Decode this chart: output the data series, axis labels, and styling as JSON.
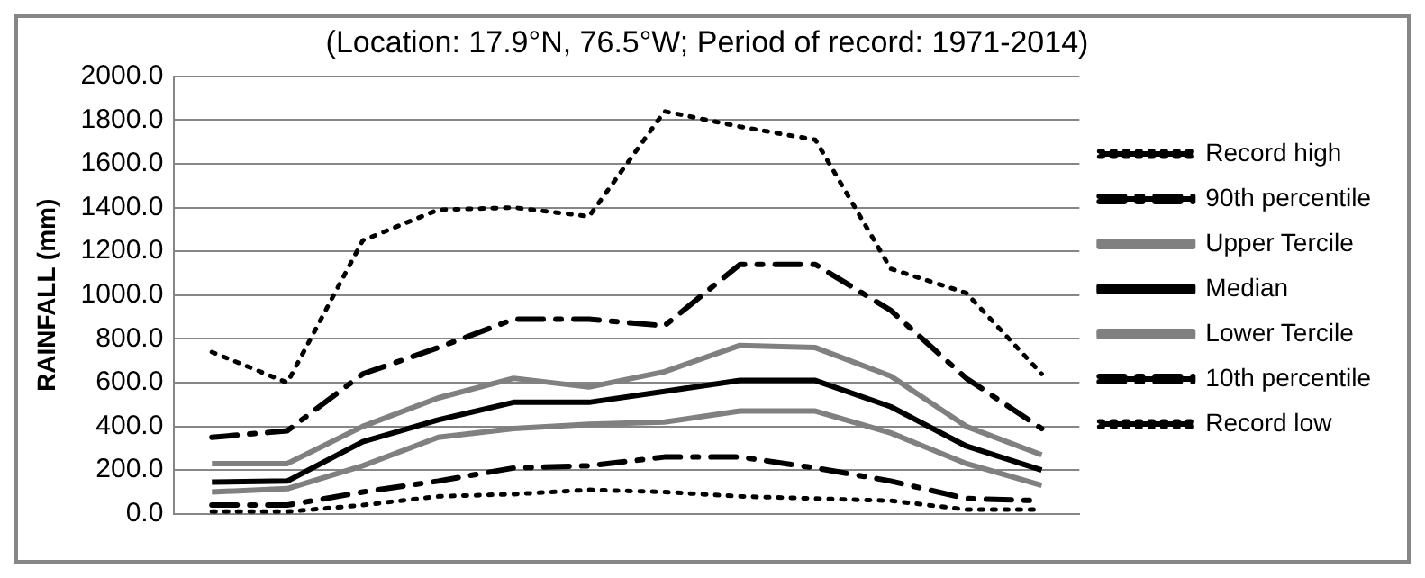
{
  "chart_data": {
    "type": "line",
    "title": "(Location: 17.9°N, 76.5°W; Period of record: 1971-2014)",
    "ylabel": "RAINFALL (mm)",
    "categories": [
      null,
      null,
      null,
      null,
      null,
      null,
      null,
      null,
      null,
      null,
      null,
      null
    ],
    "series": [
      {
        "name": "Record high",
        "color": "#000000",
        "line_style": "dotted",
        "values": [
          740,
          600,
          1250,
          1390,
          1400,
          1360,
          1840,
          1770,
          1710,
          1120,
          1010,
          640
        ]
      },
      {
        "name": "90th percentile",
        "color": "#000000",
        "line_style": "dashed",
        "values": [
          350,
          380,
          640,
          760,
          890,
          890,
          860,
          1140,
          1140,
          930,
          620,
          390
        ]
      },
      {
        "name": "Upper Tercile",
        "color": "#808080",
        "line_style": "solid",
        "values": [
          230,
          230,
          400,
          530,
          620,
          580,
          650,
          770,
          760,
          630,
          400,
          270
        ]
      },
      {
        "name": "Median",
        "color": "#000000",
        "line_style": "solid",
        "values": [
          145,
          150,
          330,
          430,
          510,
          510,
          560,
          610,
          610,
          490,
          310,
          200
        ]
      },
      {
        "name": "Lower Tercile",
        "color": "#808080",
        "line_style": "solid",
        "values": [
          100,
          115,
          220,
          350,
          390,
          410,
          420,
          470,
          470,
          370,
          230,
          130
        ]
      },
      {
        "name": "10th percentile",
        "color": "#000000",
        "line_style": "dashed",
        "values": [
          40,
          40,
          100,
          150,
          210,
          220,
          260,
          260,
          210,
          150,
          70,
          60
        ]
      },
      {
        "name": "Record low",
        "color": "#000000",
        "line_style": "dotted",
        "values": [
          10,
          10,
          40,
          80,
          90,
          110,
          100,
          80,
          70,
          60,
          20,
          20
        ]
      }
    ],
    "ylim": [
      0,
      2000
    ],
    "yticks": [
      {
        "value": 0,
        "label": "0.0"
      },
      {
        "value": 200,
        "label": "200.0"
      },
      {
        "value": 400,
        "label": "400.0"
      },
      {
        "value": 600,
        "label": "600.0"
      },
      {
        "value": 800,
        "label": "800.0"
      },
      {
        "value": 1000,
        "label": "1000.0"
      },
      {
        "value": 1200,
        "label": "1200.0"
      },
      {
        "value": 1400,
        "label": "1400.0"
      },
      {
        "value": 1600,
        "label": "1600.0"
      },
      {
        "value": 1800,
        "label": "1800.0"
      },
      {
        "value": 2000,
        "label": "2000.0"
      }
    ],
    "grid": "y",
    "legend": "right",
    "marker": "none"
  }
}
